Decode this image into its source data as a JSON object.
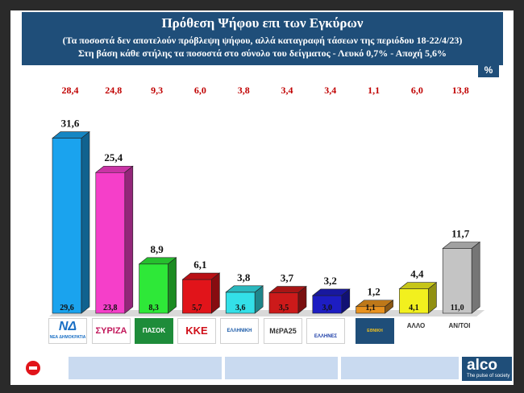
{
  "header": {
    "title": "Πρόθεση Ψήφου επι των Εγκύρων",
    "subtitle1": "(Τα ποσοστά δεν αποτελούν πρόβλεψη ψήφου, αλλά καταγραφή τάσεων της περιόδου  18-22/4/23)",
    "subtitle2": "Στη βάση κάθε στήλης τα ποσοστά στο σύνολο του δείγματος - Λευκό 0,7% - Αποχή 5,6%"
  },
  "unit_label": "%",
  "chart_data": {
    "type": "bar",
    "categories": [
      "ΝΔ",
      "ΣΥΡΙΖΑ",
      "ΠΑΣΟΚ",
      "ΚΚΕ",
      "Ελληνική Λύση",
      "ΜέΡΑ25",
      "Έλληνες",
      "Εθνική Δημιουργία",
      "ΑΛΛΟ",
      "ΑΝ/ΤΟΙ"
    ],
    "values": [
      31.6,
      25.4,
      8.9,
      6.1,
      3.8,
      3.7,
      3.2,
      1.2,
      4.4,
      11.7
    ],
    "value_labels": [
      "31,6",
      "25,4",
      "8,9",
      "6,1",
      "3,8",
      "3,7",
      "3,2",
      "1,2",
      "4,4",
      "11,7"
    ],
    "base_labels": [
      "29,6",
      "23,8",
      "8,3",
      "5,7",
      "3,6",
      "3,5",
      "3,0",
      "1,1",
      "4,1",
      "11,0"
    ],
    "previous_labels": [
      "28,4",
      "24,8",
      "9,3",
      "6,0",
      "3,8",
      "3,4",
      "3,4",
      "1,1",
      "6,0",
      "13,8"
    ],
    "colors": [
      "#1aa3ee",
      "#f53fc9",
      "#2ee838",
      "#e1141a",
      "#33e0e8",
      "#cc1a1a",
      "#1d1dc2",
      "#e8921f",
      "#f2f01e",
      "#c4c4c4"
    ],
    "ylim": [
      0,
      35
    ],
    "grid": false,
    "legend": "none"
  },
  "logos": {
    "nd": "ΝΔ",
    "nd_small": "ΝΕΑ ΔΗΜΟΚΡΑΤΙΑ",
    "syriza": "ΣΥΡΙΖΑ",
    "pasok": "ΠΑΣΟΚ",
    "kke": "ΚΚΕ",
    "ell_lysi": "ΕΛΛΗΝΙΚΗ ΛΥΣΗ",
    "mera25": "ΜέΡΑ25",
    "ellines": "ΕΛΛΗΝΕΣ",
    "ethniki": "ΕΘΝΙΚΗ ΔΗΜΙΟΥΡΓΙΑ",
    "allo": "ΑΛΛΟ",
    "antoi": "ΑΝ/ΤΟΙ"
  },
  "brand": {
    "name": "alco",
    "tagline": "The pulse of society",
    "accent": "#1f4e79"
  }
}
